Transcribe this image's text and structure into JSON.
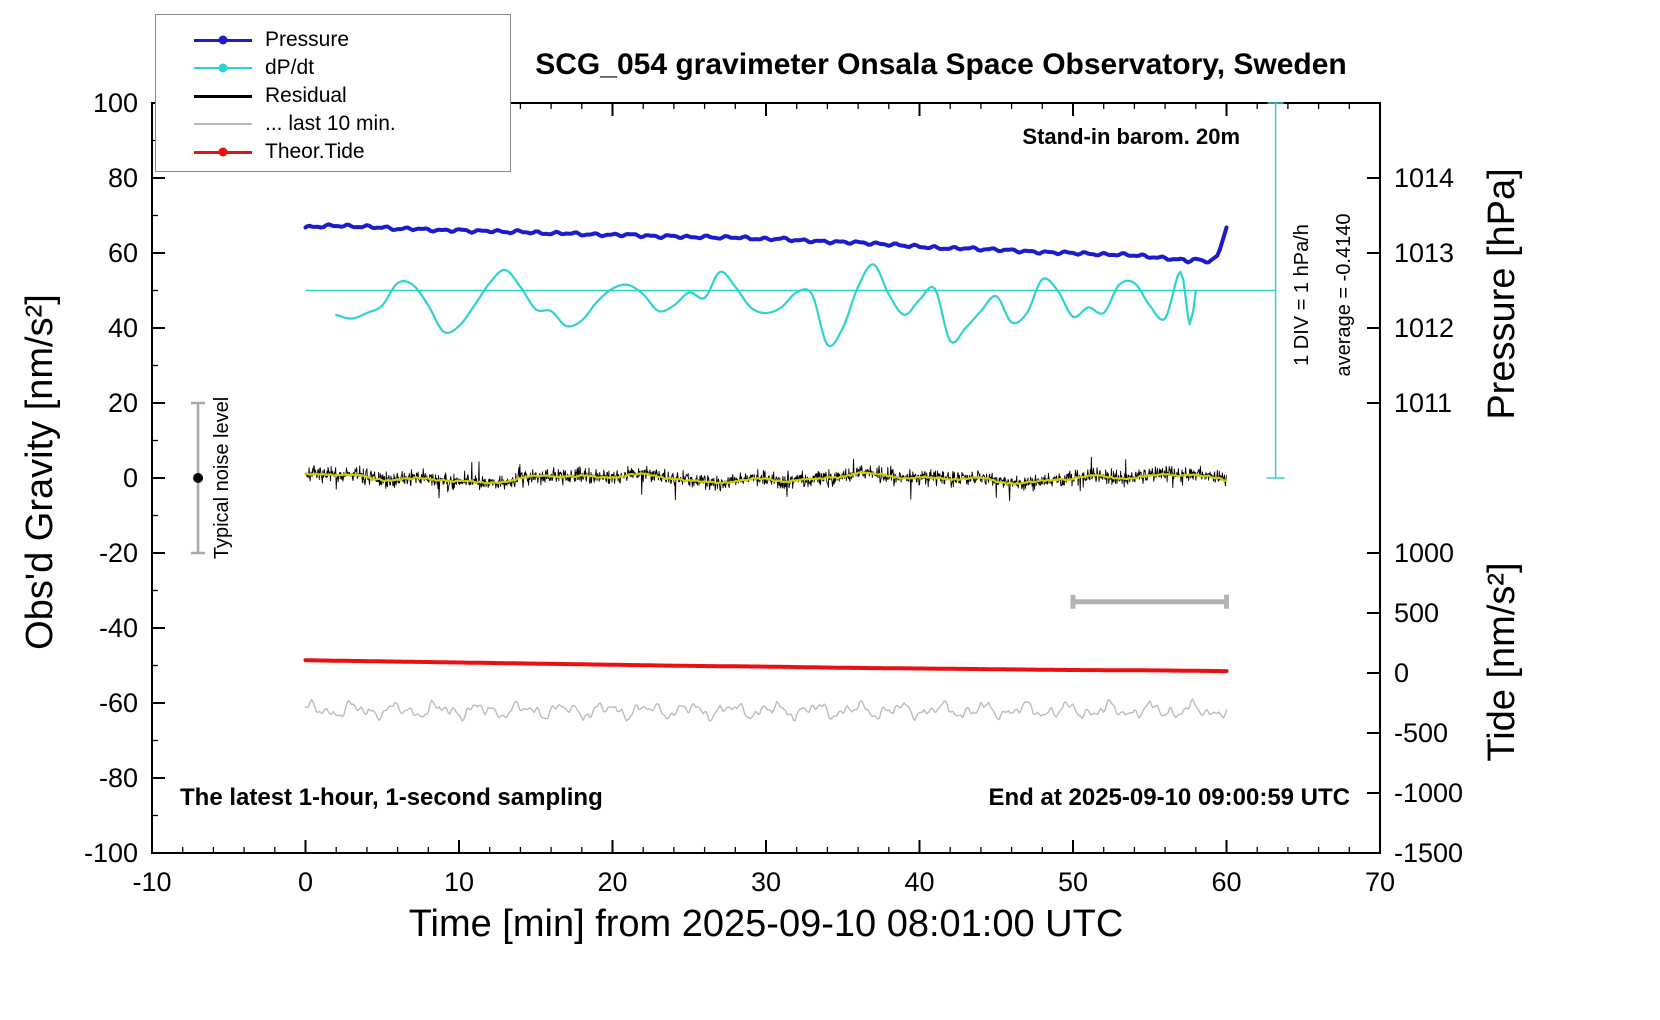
{
  "title": "SCG_054 gravimeter Onsala Space Observatory, Sweden",
  "annotations": {
    "barometer": "Stand-in barom. 20m",
    "div_scale": "1 DIV = 1 hPa/h",
    "average": "average = -0.4140",
    "noise_level": "Typical noise level",
    "sampling_note": "The latest 1-hour, 1-second sampling",
    "end_time": "End at 2025-09-10 09:00:59 UTC"
  },
  "legend": {
    "entries": [
      {
        "label": "Pressure",
        "color": "#1c1ccd",
        "marker": true,
        "width": 3
      },
      {
        "label": "dP/dt",
        "color": "#2fd3cd",
        "marker": true,
        "width": 2.2
      },
      {
        "label": "Residual",
        "color": "#000000",
        "marker": false,
        "width": 3
      },
      {
        "label": "... last 10 min.",
        "color": "#b8b8b8",
        "marker": false,
        "width": 2.4
      },
      {
        "label": "Theor.Tide",
        "color": "#e81010",
        "marker": true,
        "width": 3
      }
    ]
  },
  "axes": {
    "x": {
      "label": "Time [min] from 2025-09-10 08:01:00 UTC",
      "min": -10,
      "max": 70,
      "major_ticks": [
        -10,
        0,
        10,
        20,
        30,
        40,
        50,
        60,
        70
      ],
      "minor_step": 2
    },
    "y_left": {
      "label": "Obs'd Gravity [nm/s²]",
      "min": -100,
      "max": 100,
      "major_ticks": [
        -100,
        -80,
        -60,
        -40,
        -20,
        0,
        20,
        40,
        60,
        80,
        100
      ],
      "minor_step": 10
    },
    "y_right_pressure": {
      "label": "Pressure [hPa]",
      "ticks": [
        {
          "value": "1014",
          "at": 80
        },
        {
          "value": "1013",
          "at": 60
        },
        {
          "value": "1012",
          "at": 40
        },
        {
          "value": "1011",
          "at": 20
        }
      ]
    },
    "y_right_tide": {
      "label": "Tide [nm/s²]",
      "ticks": [
        {
          "value": "1000",
          "at": -20
        },
        {
          "value": "500",
          "at": -36
        },
        {
          "value": "0",
          "at": -52
        },
        {
          "value": "-500",
          "at": -68
        },
        {
          "value": "-1000",
          "at": -84
        },
        {
          "value": "-1500",
          "at": -100
        }
      ]
    }
  },
  "chart_data": {
    "type": "line",
    "title": "SCG_054 gravimeter Onsala Space Observatory, Sweden",
    "xlabel": "Time [min] from 2025-09-10 08:01:00 UTC",
    "ylabel_left": "Obs'd Gravity [nm/s²]",
    "ylabel_right_top": "Pressure [hPa]",
    "ylabel_right_bottom": "Tide [nm/s²]",
    "xlim": [
      -10,
      70
    ],
    "ylim_left": [
      -100,
      100
    ],
    "grid": false,
    "legend_position": "top-left",
    "series": [
      {
        "name": "Pressure",
        "color": "#1c1ccd",
        "width": 4,
        "wiggle": {
          "amp": 0.28,
          "f1": 5.1,
          "f2": 9.7
        },
        "points": [
          [
            0,
            66.8
          ],
          [
            1,
            67.1
          ],
          [
            2,
            67.3
          ],
          [
            3,
            67.1
          ],
          [
            4,
            67.0
          ],
          [
            5,
            66.8
          ],
          [
            6,
            66.4
          ],
          [
            7,
            66.5
          ],
          [
            8,
            66.2
          ],
          [
            9,
            66.0
          ],
          [
            10,
            66.1
          ],
          [
            11,
            65.8
          ],
          [
            12,
            65.9
          ],
          [
            13,
            65.6
          ],
          [
            14,
            65.7
          ],
          [
            15,
            65.4
          ],
          [
            16,
            65.2
          ],
          [
            17,
            65.3
          ],
          [
            18,
            65.0
          ],
          [
            19,
            64.9
          ],
          [
            20,
            64.8
          ],
          [
            21,
            64.9
          ],
          [
            22,
            64.6
          ],
          [
            23,
            64.4
          ],
          [
            24,
            64.5
          ],
          [
            25,
            64.2
          ],
          [
            26,
            64.3
          ],
          [
            27,
            64.1
          ],
          [
            28,
            64.2
          ],
          [
            29,
            63.9
          ],
          [
            30,
            63.7
          ],
          [
            31,
            63.8
          ],
          [
            32,
            63.4
          ],
          [
            33,
            63.2
          ],
          [
            34,
            63.0
          ],
          [
            35,
            62.9
          ],
          [
            36,
            62.8
          ],
          [
            37,
            62.5
          ],
          [
            38,
            62.3
          ],
          [
            39,
            62.0
          ],
          [
            40,
            61.7
          ],
          [
            41,
            61.4
          ],
          [
            42,
            61.2
          ],
          [
            43,
            61.3
          ],
          [
            44,
            61.0
          ],
          [
            45,
            60.9
          ],
          [
            46,
            60.7
          ],
          [
            47,
            60.4
          ],
          [
            48,
            60.2
          ],
          [
            49,
            60.1
          ],
          [
            50,
            60.0
          ],
          [
            51,
            59.8
          ],
          [
            52,
            59.6
          ],
          [
            53,
            59.6
          ],
          [
            54,
            59.4
          ],
          [
            55,
            59.0
          ],
          [
            56,
            58.6
          ],
          [
            57,
            58.2
          ],
          [
            57.5,
            57.9
          ],
          [
            58,
            58.4
          ],
          [
            58.5,
            57.7
          ],
          [
            59,
            58.2
          ],
          [
            59.4,
            59.2
          ],
          [
            59.7,
            62.5
          ],
          [
            60,
            67.2
          ]
        ]
      },
      {
        "name": "dP/dt",
        "color": "#2fd3cd",
        "width": 2.2,
        "points": [
          [
            2,
            43.5
          ],
          [
            3,
            42.5
          ],
          [
            4,
            44
          ],
          [
            5,
            46
          ],
          [
            6,
            52
          ],
          [
            7,
            51.5
          ],
          [
            8,
            46
          ],
          [
            9,
            39
          ],
          [
            10,
            40.5
          ],
          [
            11,
            46
          ],
          [
            12,
            52
          ],
          [
            13,
            55.5
          ],
          [
            14,
            51
          ],
          [
            15,
            45
          ],
          [
            16,
            44.5
          ],
          [
            17,
            40.5
          ],
          [
            18,
            42
          ],
          [
            19,
            47
          ],
          [
            20,
            50.5
          ],
          [
            21,
            51.5
          ],
          [
            22,
            49
          ],
          [
            23,
            44.5
          ],
          [
            24,
            46
          ],
          [
            25,
            49.5
          ],
          [
            26,
            48
          ],
          [
            27,
            55
          ],
          [
            28,
            51
          ],
          [
            29,
            45.5
          ],
          [
            30,
            44
          ],
          [
            31,
            45.5
          ],
          [
            32,
            49.5
          ],
          [
            33,
            49
          ],
          [
            34,
            35.5
          ],
          [
            35,
            40
          ],
          [
            36,
            51
          ],
          [
            37,
            57
          ],
          [
            38,
            49
          ],
          [
            39,
            43.5
          ],
          [
            40,
            47.5
          ],
          [
            41,
            50.5
          ],
          [
            42,
            36.5
          ],
          [
            43,
            40
          ],
          [
            44,
            44.5
          ],
          [
            45,
            48.5
          ],
          [
            46,
            41.5
          ],
          [
            47,
            44
          ],
          [
            48,
            53
          ],
          [
            49,
            50
          ],
          [
            50,
            43
          ],
          [
            51,
            45.5
          ],
          [
            52,
            44
          ],
          [
            53,
            51.5
          ],
          [
            54,
            52
          ],
          [
            55,
            46
          ],
          [
            56,
            42.5
          ],
          [
            57,
            55
          ],
          [
            57.6,
            41
          ],
          [
            58,
            50
          ]
        ]
      },
      {
        "name": "Residual",
        "color": "#000000",
        "width": 0.9,
        "noise": {
          "baseline": 0,
          "amplitude": 4.5,
          "seed": 7,
          "samples_per_min": 30,
          "mode": "hash",
          "x_start": 0,
          "x_end": 60
        }
      },
      {
        "name": "Residual smoothed",
        "color": "#cdcd00",
        "width": 2.2,
        "noise": {
          "baseline": -0.1,
          "amplitude": 1.3,
          "seed": 11,
          "samples_per_min": 6,
          "mode": "track",
          "x_start": 0,
          "x_end": 60
        }
      },
      {
        "name": "last 10 min",
        "color": "#bcbcbc",
        "width": 1.4,
        "noise": {
          "baseline": -62,
          "amplitude": 3.0,
          "seed": 23,
          "samples_per_min": 10,
          "mode": "wavy",
          "x_start": 0,
          "x_end": 60
        }
      },
      {
        "name": "Theor.Tide",
        "color": "#e81010",
        "width": 4,
        "points": [
          [
            0,
            -48.6
          ],
          [
            5,
            -48.9
          ],
          [
            10,
            -49.2
          ],
          [
            15,
            -49.5
          ],
          [
            20,
            -49.8
          ],
          [
            25,
            -50.1
          ],
          [
            30,
            -50.3
          ],
          [
            35,
            -50.6
          ],
          [
            40,
            -50.8
          ],
          [
            45,
            -51.0
          ],
          [
            50,
            -51.2
          ],
          [
            55,
            -51.3
          ],
          [
            60,
            -51.5
          ]
        ]
      }
    ],
    "reference_lines": [
      {
        "name": "dp-dt-zero-reference",
        "orientation": "horizontal",
        "y": 50,
        "x_start": 0,
        "x_end": 63.2,
        "color": "#2fd3cd",
        "width": 1.5
      },
      {
        "name": "one-div-scale",
        "orientation": "vertical",
        "x": 63.2,
        "y_start": 0,
        "y_end": 100,
        "color": "#2fd3cd",
        "width": 1.5
      }
    ],
    "error_bars": [
      {
        "name": "typical-noise-level",
        "x": -7,
        "y_center": 0,
        "y_min": -20,
        "y_max": 20,
        "color": "#a9a9a9",
        "dot_color": "#000000"
      }
    ],
    "scale_bars": [
      {
        "name": "ten-min-scale-bar",
        "x_start": 50,
        "x_end": 60,
        "y": -33,
        "color": "#b3b3b3",
        "width": 5
      }
    ]
  }
}
